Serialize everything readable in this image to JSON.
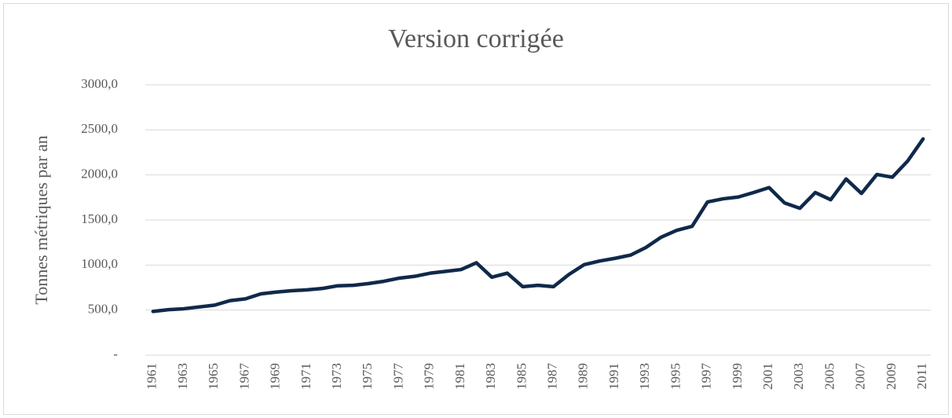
{
  "chart_data": {
    "type": "line",
    "title": "Version corrigée",
    "y_label": "Tonnes métriques par an",
    "categories": [
      "1961",
      null,
      "1963",
      null,
      "1965",
      null,
      "1967",
      null,
      "1969",
      null,
      "1971",
      null,
      "1973",
      null,
      "1975",
      null,
      "1977",
      null,
      "1979",
      null,
      "1981",
      null,
      "1983",
      null,
      "1985",
      null,
      "1987",
      null,
      "1989",
      null,
      "1991",
      null,
      "1993",
      null,
      "1995",
      null,
      "1997",
      null,
      "1999",
      null,
      "2001",
      null,
      "2003",
      null,
      "2005",
      null,
      "2007",
      null,
      "2009",
      null,
      "2011"
    ],
    "series": [
      {
        "name": "Tonnes métriques par an",
        "color": "#10294a",
        "values": [
          485,
          505,
          515,
          535,
          555,
          605,
          625,
          680,
          700,
          715,
          725,
          740,
          770,
          775,
          795,
          820,
          855,
          875,
          910,
          930,
          950,
          1025,
          865,
          910,
          760,
          775,
          760,
          895,
          1005,
          1045,
          1075,
          1110,
          1195,
          1310,
          1385,
          1430,
          1700,
          1735,
          1755,
          1805,
          1860,
          1690,
          1630,
          1805,
          1725,
          1955,
          1795,
          2005,
          1975,
          2155,
          2400
        ]
      }
    ],
    "ylim": [
      0,
      3000
    ],
    "yticks": [
      {
        "value": 0,
        "label": "-"
      },
      {
        "value": 500,
        "label": "500,0"
      },
      {
        "value": 1000,
        "label": "1000,0"
      },
      {
        "value": 1500,
        "label": "1500,0"
      },
      {
        "value": 2000,
        "label": "2000,0"
      },
      {
        "value": 2500,
        "label": "2500,0"
      },
      {
        "value": 3000,
        "label": "3000,0"
      }
    ],
    "grid": true
  }
}
